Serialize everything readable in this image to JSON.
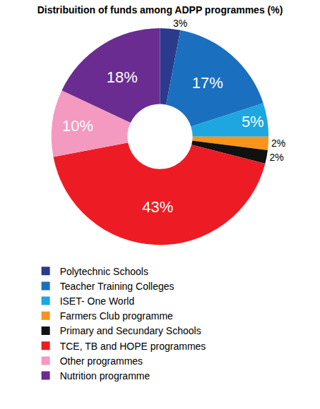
{
  "chart_data": {
    "type": "donut",
    "title": "Distribuition of funds among ADPP programmes (%)",
    "categories": [
      "Polytechnic Schools",
      "Teacher Training Colleges",
      "ISET- One World",
      "Farmers Club programme",
      "Primary and Secundary Schools",
      "TCE, TB and HOPE programmes",
      "Other programmes",
      "Nutrition programme"
    ],
    "values": [
      3,
      17,
      5,
      2,
      2,
      43,
      10,
      18
    ],
    "value_labels": [
      "3%",
      "17%",
      "5%",
      "2%",
      "2%",
      "43%",
      "10%",
      "18%"
    ],
    "colors": [
      "#2b3a8c",
      "#1a6fbf",
      "#1ea6e0",
      "#f7941d",
      "#111111",
      "#ed1c24",
      "#f49ac1",
      "#6a2c91"
    ],
    "data_labels": true,
    "legend": "bottom"
  }
}
